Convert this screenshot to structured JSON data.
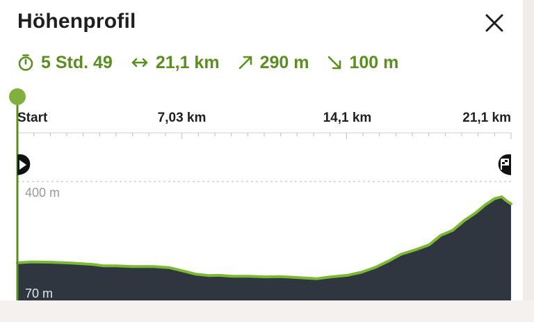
{
  "header": {
    "title": "Höhenprofil",
    "close_icon": "close-icon"
  },
  "stats": [
    {
      "icon": "stopwatch-icon",
      "label": "5 Std. 49"
    },
    {
      "icon": "distance-icon",
      "label": "21,1 km"
    },
    {
      "icon": "ascent-icon",
      "label": "290 m"
    },
    {
      "icon": "descent-icon",
      "label": "100 m"
    }
  ],
  "colors": {
    "accent": "#5a8f1f",
    "profile_fill": "#2f3640",
    "profile_line": "#7bb935",
    "text": "#1f1f1f"
  },
  "chart_data": {
    "type": "area",
    "x_ticks": [
      {
        "value": 0,
        "label": "Start"
      },
      {
        "value": 7.03,
        "label": "7,03 km"
      },
      {
        "value": 14.1,
        "label": "14,1 km"
      },
      {
        "value": 21.1,
        "label": "21,1 km"
      }
    ],
    "y_ticks": [
      {
        "value": 400,
        "label": "400 m"
      },
      {
        "value": 70,
        "label": "70 m"
      }
    ],
    "xlim": [
      0,
      21.1
    ],
    "ylim": [
      50,
      450
    ],
    "start_marker": "play-icon",
    "finish_marker": "finish-flag-icon",
    "position_marker_km": 0,
    "x": [
      0,
      0.6,
      1.4,
      2.3,
      3.2,
      3.7,
      4.2,
      4.9,
      5.8,
      6.5,
      7.0,
      7.6,
      8.2,
      8.6,
      9.2,
      9.9,
      10.6,
      11.2,
      11.7,
      12.3,
      12.8,
      13.4,
      14.1,
      14.7,
      15.3,
      15.9,
      16.4,
      17.0,
      17.6,
      18.1,
      18.6,
      19.1,
      19.6,
      20.0,
      20.4,
      20.7,
      20.9,
      21.1
    ],
    "y": [
      134,
      137,
      136,
      133,
      129,
      124,
      124,
      122,
      122,
      118,
      109,
      97,
      92,
      93,
      90,
      90,
      88,
      89,
      87,
      84,
      82,
      88,
      93,
      103,
      119,
      141,
      162,
      176,
      193,
      224,
      240,
      272,
      298,
      324,
      344,
      350,
      337,
      327
    ]
  }
}
